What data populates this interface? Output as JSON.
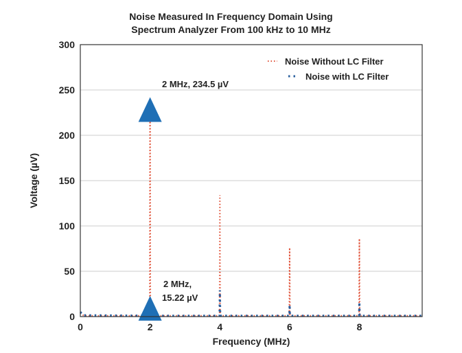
{
  "chart_data": {
    "type": "line",
    "title_lines": [
      "Noise Measured In Frequency Domain Using",
      "Spectrum Analyzer From 100 kHz to 10 MHz"
    ],
    "xlabel": "Frequency (MHz)",
    "ylabel": "Voltage (µV)",
    "xlim": [
      0,
      9.8
    ],
    "ylim": [
      0,
      300
    ],
    "xticks": [
      0,
      2,
      4,
      6,
      8
    ],
    "yticks": [
      0,
      50,
      100,
      150,
      200,
      250,
      300
    ],
    "grid": "horizontal",
    "legend_position": "top-right",
    "series": [
      {
        "name": "Noise Without LC Filter",
        "color": "#e0533a",
        "style": "dotted",
        "x": [
          0,
          0.1,
          1.99,
          2.0,
          2.01,
          3.99,
          4.0,
          4.01,
          5.99,
          6.0,
          6.01,
          7.99,
          8.0,
          8.01,
          9.8
        ],
        "y": [
          4,
          1,
          1,
          234.5,
          1,
          1,
          134,
          1,
          1,
          76,
          1,
          1,
          86,
          1,
          1
        ]
      },
      {
        "name": "Noise with LC Filter",
        "color": "#2a5f9e",
        "style": "dotted",
        "x": [
          0,
          0.1,
          1.99,
          2.0,
          2.01,
          3.99,
          4.0,
          4.01,
          5.99,
          6.0,
          6.01,
          7.99,
          8.0,
          8.01,
          9.8
        ],
        "y": [
          5,
          1.5,
          1,
          15.22,
          1,
          1,
          29,
          1,
          1,
          13,
          1,
          1,
          16,
          1,
          1
        ]
      }
    ],
    "annotations": [
      {
        "text": "2 MHz, 234.5 µV",
        "x": 2,
        "y": 234.5
      },
      {
        "text_lines": [
          "2 MHz,",
          "15.22 µV"
        ],
        "x": 2,
        "y": 15.22
      }
    ]
  }
}
